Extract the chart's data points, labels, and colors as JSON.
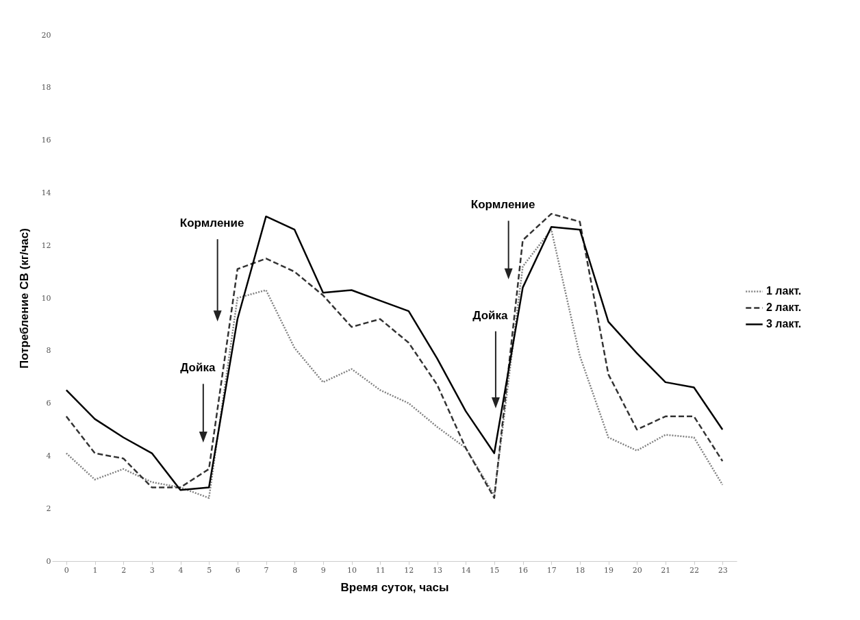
{
  "chart_data": {
    "type": "line",
    "x": [
      0,
      1,
      2,
      3,
      4,
      5,
      6,
      7,
      8,
      9,
      10,
      11,
      12,
      13,
      14,
      15,
      16,
      17,
      18,
      19,
      20,
      21,
      22,
      23
    ],
    "series": [
      {
        "name": "1 лакт.",
        "color": "#808080",
        "line_style": "dotted",
        "values": [
          4.1,
          3.1,
          3.5,
          3.0,
          2.8,
          2.4,
          10.0,
          10.3,
          8.1,
          6.8,
          7.3,
          6.5,
          6.0,
          5.1,
          4.3,
          2.5,
          11.2,
          12.6,
          7.8,
          4.7,
          4.2,
          4.8,
          4.7,
          2.9
        ]
      },
      {
        "name": "2 лакт.",
        "color": "#333333",
        "line_style": "dashed",
        "values": [
          5.5,
          4.1,
          3.9,
          2.8,
          2.8,
          3.5,
          11.1,
          11.5,
          11.0,
          10.1,
          8.9,
          9.2,
          8.3,
          6.7,
          4.3,
          2.4,
          12.2,
          13.2,
          12.9,
          7.1,
          5.0,
          5.5,
          5.5,
          3.8
        ]
      },
      {
        "name": "3 лакт.",
        "color": "#000000",
        "line_style": "solid",
        "values": [
          6.5,
          5.4,
          4.7,
          4.1,
          2.7,
          2.8,
          9.2,
          13.1,
          12.6,
          10.2,
          10.3,
          9.9,
          9.5,
          7.7,
          5.7,
          4.1,
          10.4,
          12.7,
          12.6,
          9.1,
          7.9,
          6.8,
          6.6,
          5.0
        ]
      }
    ],
    "xlabel": "Время суток, часы",
    "ylabel": "Потребление СВ (кг/час)",
    "xlim": [
      -0.5,
      23.5
    ],
    "xticks": [
      0,
      1,
      2,
      3,
      4,
      5,
      6,
      7,
      8,
      9,
      10,
      11,
      12,
      13,
      14,
      15,
      16,
      17,
      18,
      19,
      20,
      21,
      22,
      23
    ],
    "ylim": [
      0,
      20
    ],
    "yticks": [
      0,
      2,
      4,
      6,
      8,
      10,
      12,
      14,
      16,
      18,
      20
    ],
    "grid": false,
    "legend": "right",
    "annotations": [
      "Дойка",
      "Кормление",
      "Дойка",
      "Кормление"
    ]
  }
}
